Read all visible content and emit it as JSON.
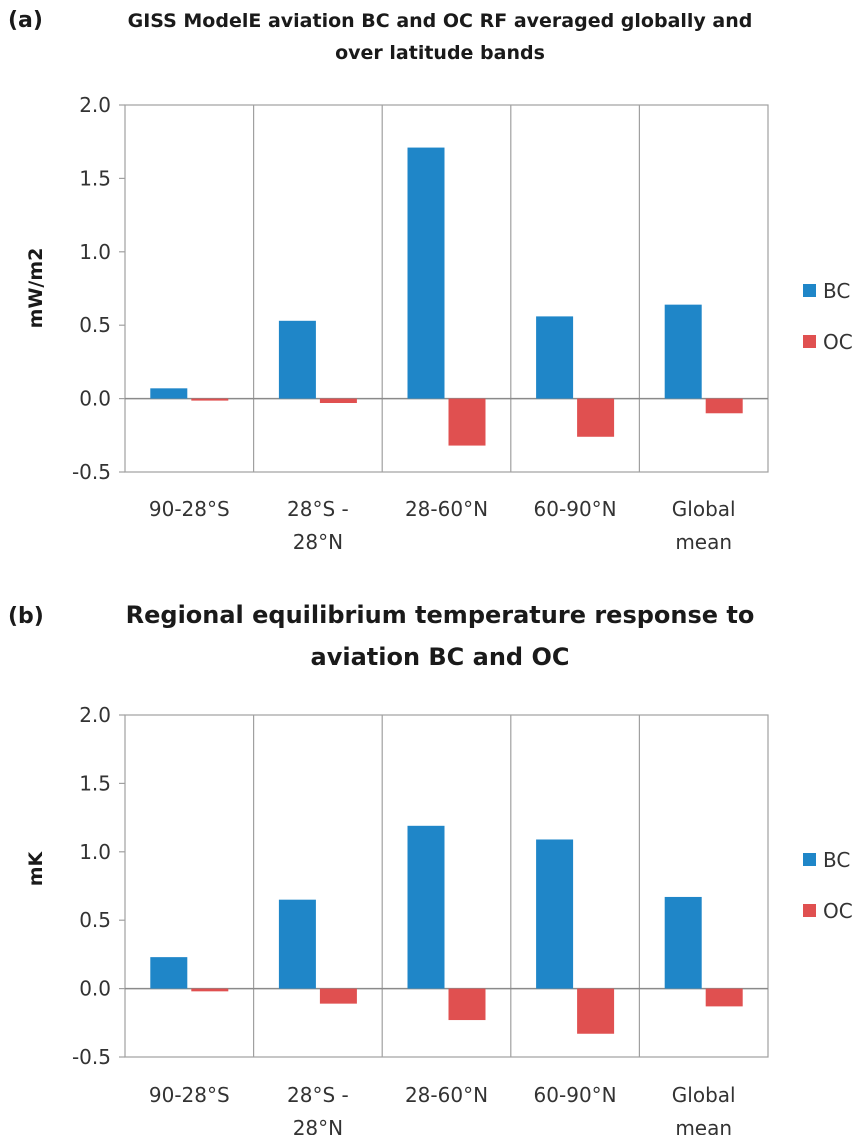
{
  "chart_data": [
    {
      "type": "bar",
      "panel_label": "(a)",
      "title_lines": [
        "GISS ModelE aviation BC and OC RF averaged globally and",
        "over latitude bands"
      ],
      "ylabel": "mW/m2",
      "xlabel": "",
      "ylim": [
        -0.5,
        2.0
      ],
      "yticks": [
        "2.0",
        "1.5",
        "1.0",
        "0.5",
        "0.0",
        "-0.5"
      ],
      "categories": [
        [
          "90-28°S"
        ],
        [
          "28°S -",
          "28°N"
        ],
        [
          "28-60°N"
        ],
        [
          "60-90°N"
        ],
        [
          "Global",
          "mean"
        ]
      ],
      "series": [
        {
          "name": "BC",
          "color": "#1f86c8",
          "values": [
            0.07,
            0.53,
            1.71,
            0.56,
            0.64
          ]
        },
        {
          "name": "OC",
          "color": "#e05050",
          "values": [
            -0.01,
            -0.03,
            -0.32,
            -0.26,
            -0.1
          ]
        }
      ],
      "legend_position": "right",
      "grid": "vertical category separators"
    },
    {
      "type": "bar",
      "panel_label": "(b)",
      "title_lines": [
        "Regional equilibrium temperature response to",
        "aviation BC and OC"
      ],
      "ylabel": "mK",
      "xlabel": "",
      "ylim": [
        -0.5,
        2.0
      ],
      "yticks": [
        "2.0",
        "1.5",
        "1.0",
        "0.5",
        "0.0",
        "-0.5"
      ],
      "categories": [
        [
          "90-28°S"
        ],
        [
          "28°S -",
          "28°N"
        ],
        [
          "28-60°N"
        ],
        [
          "60-90°N"
        ],
        [
          "Global",
          "mean"
        ]
      ],
      "series": [
        {
          "name": "BC",
          "color": "#1f86c8",
          "values": [
            0.23,
            0.65,
            1.19,
            1.09,
            0.67
          ]
        },
        {
          "name": "OC",
          "color": "#e05050",
          "values": [
            -0.02,
            -0.11,
            -0.23,
            -0.33,
            -0.13
          ]
        }
      ],
      "legend_position": "right",
      "grid": "vertical category separators"
    }
  ]
}
